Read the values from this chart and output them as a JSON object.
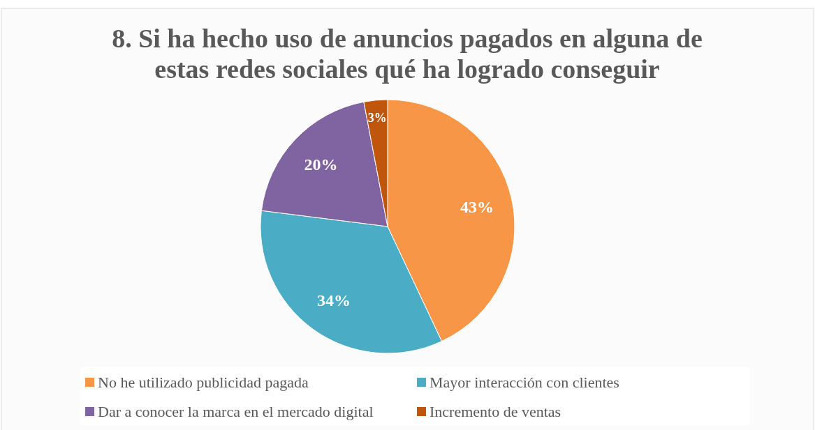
{
  "chart_data": {
    "type": "pie",
    "title": "8. Si ha hecho uso de anuncios pagados en alguna de estas redes sociales qué ha logrado conseguir",
    "categories": [
      "No he utilizado publicidad pagada",
      "Mayor interacción con clientes",
      "Dar a conocer la marca en el mercado digital",
      "Incremento de ventas"
    ],
    "values": [
      43,
      34,
      20,
      3
    ],
    "colors": [
      "#f79646",
      "#4bacc6",
      "#8064a2",
      "#c0560c"
    ],
    "value_labels": [
      "43%",
      "34%",
      "20%",
      "3%"
    ],
    "legend": "bottom"
  }
}
